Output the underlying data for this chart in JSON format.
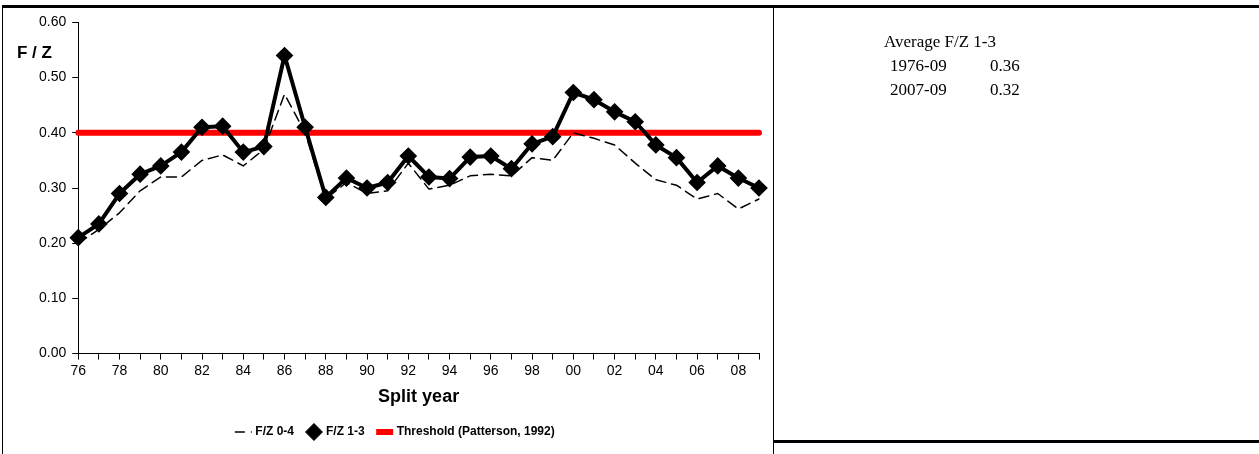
{
  "chart_data": {
    "type": "line",
    "ylabel": "F / Z",
    "xlabel": "Split year",
    "categories": [
      "76",
      null,
      "78",
      null,
      "80",
      null,
      "82",
      null,
      "84",
      null,
      "86",
      null,
      "88",
      null,
      "90",
      null,
      "92",
      null,
      "94",
      null,
      "96",
      null,
      "98",
      null,
      "00",
      null,
      "02",
      null,
      "04",
      null,
      "06",
      null,
      "08",
      null
    ],
    "series": [
      {
        "name": "F/Z 0-4",
        "color": "#000000",
        "line_style": "dashed",
        "marker": "none",
        "values": [
          0.2,
          0.225,
          0.255,
          0.295,
          0.32,
          0.32,
          0.35,
          0.36,
          0.34,
          0.37,
          0.47,
          0.4,
          0.28,
          0.31,
          0.29,
          0.295,
          0.345,
          0.298,
          0.305,
          0.322,
          0.325,
          0.322,
          0.355,
          0.35,
          0.4,
          0.39,
          0.378,
          0.345,
          0.315,
          0.305,
          0.28,
          0.29,
          0.262,
          0.28
        ]
      },
      {
        "name": "F/Z 1-3",
        "color": "#000000",
        "line_style": "solid",
        "marker": "diamond",
        "values": [
          0.21,
          0.235,
          0.29,
          0.325,
          0.34,
          0.365,
          0.41,
          0.412,
          0.365,
          0.375,
          0.54,
          0.41,
          0.283,
          0.318,
          0.3,
          0.31,
          0.358,
          0.32,
          0.317,
          0.356,
          0.358,
          0.335,
          0.38,
          0.393,
          0.473,
          0.46,
          0.438,
          0.42,
          0.378,
          0.355,
          0.31,
          0.34,
          0.318,
          0.3
        ]
      },
      {
        "name": "Threshold (Patterson, 1992)",
        "color": "#ff0000",
        "line_style": "solid",
        "marker": "none",
        "values": [
          0.4,
          0.4,
          0.4,
          0.4,
          0.4,
          0.4,
          0.4,
          0.4,
          0.4,
          0.4,
          0.4,
          0.4,
          0.4,
          0.4,
          0.4,
          0.4,
          0.4,
          0.4,
          0.4,
          0.4,
          0.4,
          0.4,
          0.4,
          0.4,
          0.4,
          0.4,
          0.4,
          0.4,
          0.4,
          0.4,
          0.4,
          0.4,
          0.4,
          0.4
        ]
      }
    ],
    "ylim": [
      0,
      0.6
    ],
    "yticks": [
      {
        "value": 0,
        "label": "0.00"
      },
      {
        "value": 0.1,
        "label": "0.10"
      },
      {
        "value": 0.2,
        "label": "0.20"
      },
      {
        "value": 0.3,
        "label": "0.30"
      },
      {
        "value": 0.4,
        "label": "0.40"
      },
      {
        "value": 0.5,
        "label": "0.50"
      },
      {
        "value": 0.6,
        "label": "0.60"
      }
    ],
    "grid": false,
    "legend": "bottom",
    "annotations": [
      "Average F/Z 1-3",
      "1976-09\t0.36",
      "2007-09\t0.32"
    ]
  }
}
